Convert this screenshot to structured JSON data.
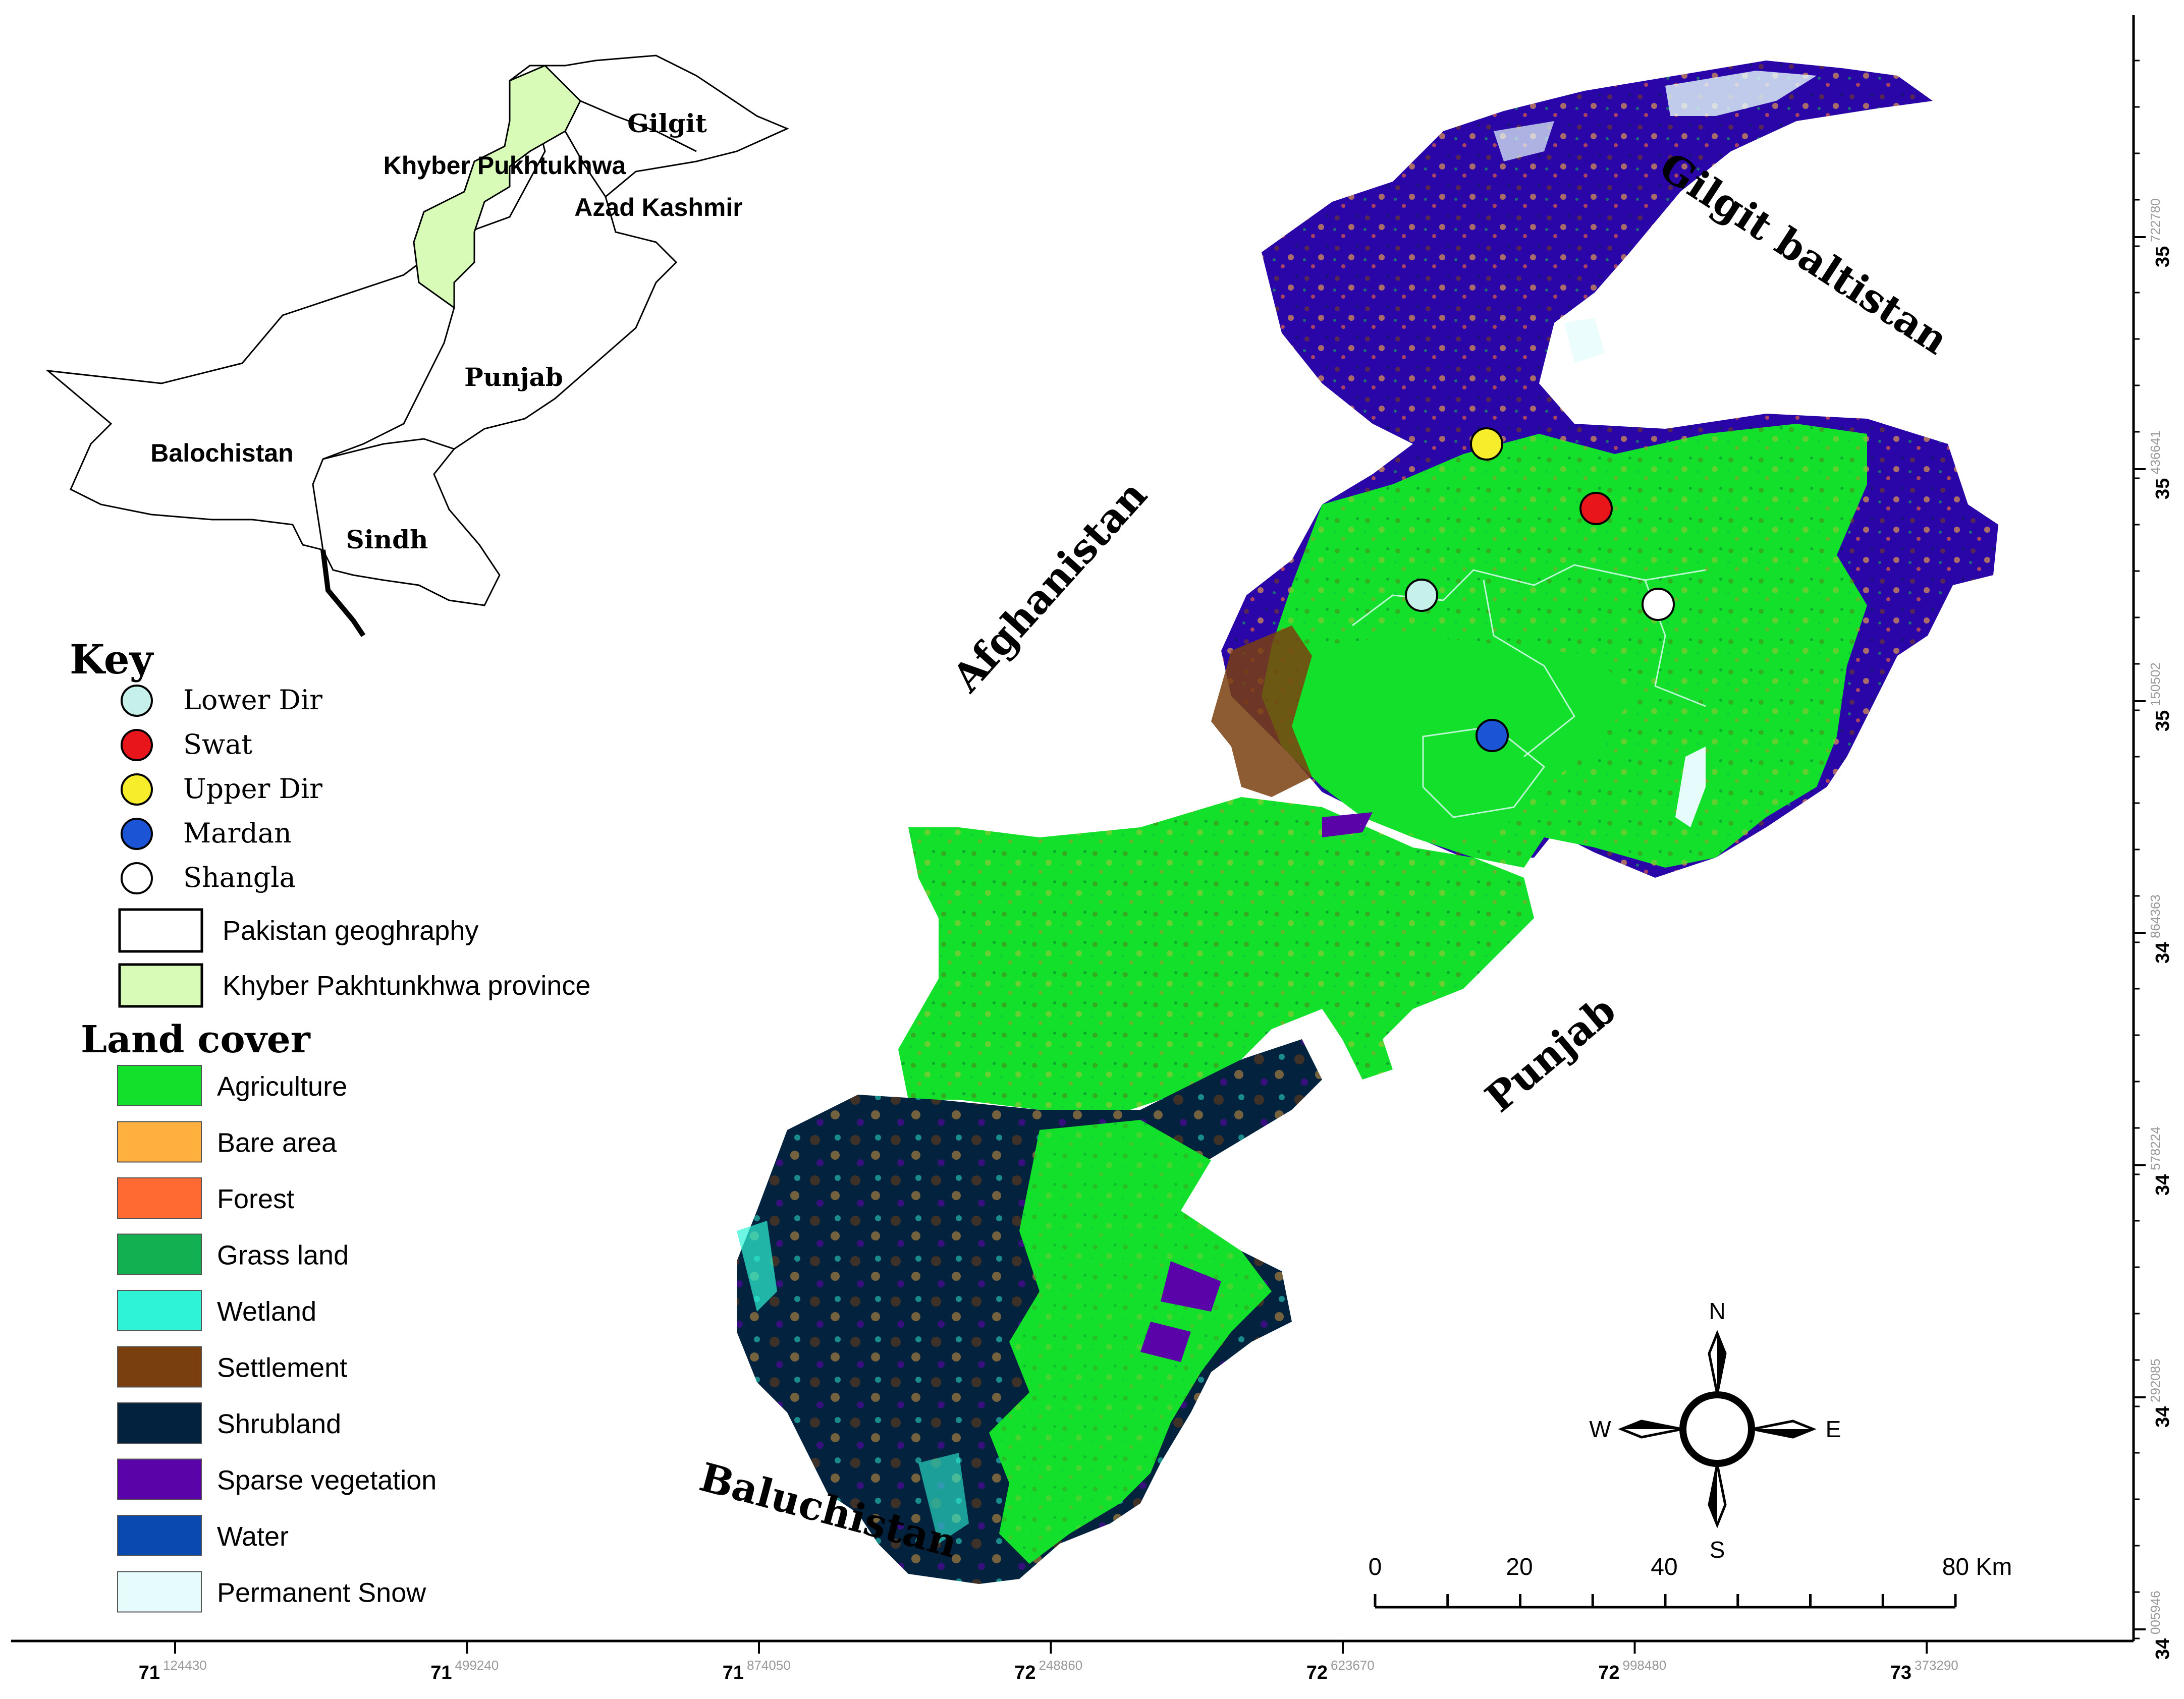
{
  "inset_map": {
    "labels": {
      "gilgit": "Gilgit",
      "kp": "Khyber Pukhtukhwa",
      "azad_kashmir": "Azad Kashmir",
      "punjab": "Punjab",
      "balochistan": "Balochistan",
      "sindh": "Sindh"
    }
  },
  "key": {
    "title": "Key",
    "districts": [
      {
        "label": "Lower Dir",
        "color": "#c6f1ea"
      },
      {
        "label": "Swat",
        "color": "#e8151b"
      },
      {
        "label": "Upper Dir",
        "color": "#f7ed2a"
      },
      {
        "label": "Mardan",
        "color": "#1b55d6"
      },
      {
        "label": "Shangla",
        "color": "#ffffff"
      }
    ],
    "areas": [
      {
        "label": "Pakistan geoghraphy",
        "color": "#ffffff"
      },
      {
        "label": "Khyber Pakhtunkhwa province",
        "color": "#d8fbb8"
      }
    ]
  },
  "land_cover": {
    "title": "Land cover",
    "classes": [
      {
        "label": "Agriculture",
        "color": "#12e02a"
      },
      {
        "label": "Bare area",
        "color": "#ffb03f"
      },
      {
        "label": "Forest",
        "color": "#ff6a33"
      },
      {
        "label": "Grass land",
        "color": "#12b050"
      },
      {
        "label": "Wetland",
        "color": "#2ff3d6"
      },
      {
        "label": "Settlement",
        "color": "#7a3f0f"
      },
      {
        "label": "Shrubland",
        "color": "#02223e"
      },
      {
        "label": "Sparse vegetation",
        "color": "#5a03a8"
      },
      {
        "label": "Water",
        "color": "#0a49b0"
      },
      {
        "label": "Permanent Snow",
        "color": "#e6fcfc"
      }
    ]
  },
  "map_labels": {
    "gilgit_baltistan": "Gilgit baltistan",
    "afghanistan": "Afghanistan",
    "punjab": "Punjab",
    "baluchistan": "Baluchistan"
  },
  "compass": {
    "n": "N",
    "s": "S",
    "e": "E",
    "w": "W"
  },
  "scale_bar": {
    "labels": [
      "0",
      "20",
      "40",
      "80 Km"
    ]
  },
  "x_axis": {
    "ticks": [
      {
        "deg": "71",
        "minor": "124430"
      },
      {
        "deg": "71",
        "minor": "499240"
      },
      {
        "deg": "71",
        "minor": "874050"
      },
      {
        "deg": "72",
        "minor": "248860"
      },
      {
        "deg": "72",
        "minor": "623670"
      },
      {
        "deg": "72",
        "minor": "998480"
      },
      {
        "deg": "73",
        "minor": "373290"
      }
    ]
  },
  "y_axis": {
    "ticks": [
      {
        "deg": "35",
        "minor": "722780"
      },
      {
        "deg": "35",
        "minor": "436641"
      },
      {
        "deg": "35",
        "minor": "150502"
      },
      {
        "deg": "34",
        "minor": "864363"
      },
      {
        "deg": "34",
        "minor": "578224"
      },
      {
        "deg": "34",
        "minor": "292085"
      },
      {
        "deg": "34",
        "minor": "005946"
      }
    ]
  }
}
